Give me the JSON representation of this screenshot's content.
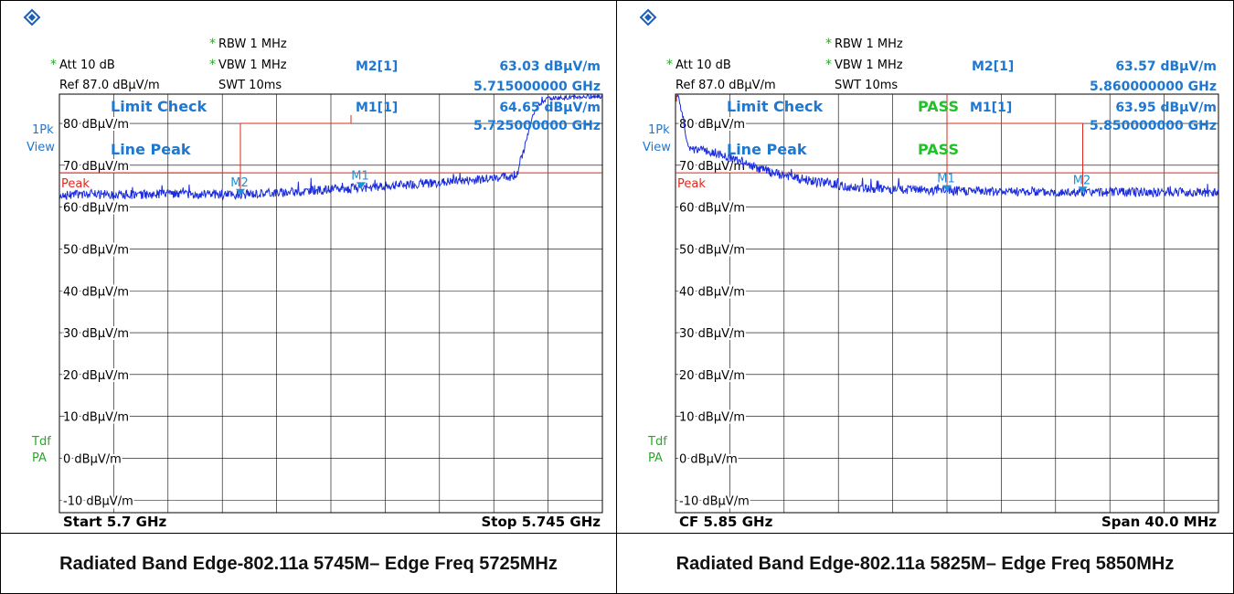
{
  "captions": [
    "Radiated Band Edge-802.11a 5745M– Edge Freq 5725MHz",
    "Radiated Band Edge-802.11a 5825M– Edge Freq 5850MHz"
  ],
  "colors": {
    "trace": "#1a2cdc",
    "limit": "#e0281e",
    "marker": "#1e90d8",
    "info_blue": "#1e78d2",
    "pass": "#22c02a",
    "side_green": "#2aa82a",
    "grid": "#000000"
  },
  "chart_data": [
    {
      "type": "line",
      "title": "",
      "logo": "rohde-schwarz-logo",
      "header": {
        "att": "Att  10 dB",
        "ref": "Ref  87.0 dBµV/m",
        "rbw": "RBW 1 MHz",
        "vbw": "VBW 1 MHz",
        "swt": "SWT 10ms",
        "m2_label": "M2[1]",
        "m2_level": "63.03 dBµV/m",
        "m2_freq": "5.715000000 GHz",
        "m1_label": "M1[1]",
        "m1_level": "64.65 dBµV/m",
        "m1_freq": "5.725000000 GHz"
      },
      "side": {
        "trace": "1Pk",
        "view": "View",
        "tdf": "Tdf",
        "pa": "PA"
      },
      "limit_check": "Limit Check",
      "line_peak": "Line Peak",
      "pass_labels": [],
      "limit_label": "Peak",
      "xlabel_left": "Start 5.7 GHz",
      "xlabel_right": "Stop 5.745 GHz",
      "x_range": [
        5.7,
        5.745
      ],
      "ylim": [
        -13,
        87
      ],
      "yticks": [
        80,
        70,
        60,
        50,
        40,
        30,
        20,
        10,
        0,
        -10
      ],
      "ytick_labels": [
        "80 dBµV/m",
        "70 dBµV/m",
        "60 dBµV/m",
        "50 dBµV/m",
        "40 dBµV/m",
        "30 dBµV/m",
        "20 dBµV/m",
        "10 dBµV/m",
        "0 dBµV/m",
        "-10 dBµV/m"
      ],
      "limit_line": 68.2,
      "trace": [
        [
          5.7,
          62.9
        ],
        [
          5.705,
          63.0
        ],
        [
          5.71,
          63.1
        ],
        [
          5.715,
          63.03
        ],
        [
          5.72,
          63.7
        ],
        [
          5.725,
          64.65
        ],
        [
          5.73,
          65.6
        ],
        [
          5.735,
          66.6
        ],
        [
          5.7375,
          67.3
        ],
        [
          5.738,
          68.5
        ],
        [
          5.7385,
          74
        ],
        [
          5.739,
          79
        ],
        [
          5.7393,
          82.5
        ],
        [
          5.7397,
          84.5
        ],
        [
          5.7405,
          86
        ],
        [
          5.745,
          86.5
        ]
      ],
      "markers": [
        {
          "name": "M2",
          "x": 5.715,
          "y": 63.03
        },
        {
          "name": "M1",
          "x": 5.725,
          "y": 64.65
        }
      ],
      "ref_lines": [
        {
          "x": 5.715,
          "y": 80
        }
      ]
    },
    {
      "type": "line",
      "title": "",
      "logo": "rohde-schwarz-logo",
      "header": {
        "att": "Att  10 dB",
        "ref": "Ref  87.0 dBµV/m",
        "rbw": "RBW 1 MHz",
        "vbw": "VBW 1 MHz",
        "swt": "SWT 10ms",
        "m2_label": "M2[1]",
        "m2_level": "63.57 dBµV/m",
        "m2_freq": "5.860000000 GHz",
        "m1_label": "M1[1]",
        "m1_level": "63.95 dBµV/m",
        "m1_freq": "5.850000000 GHz"
      },
      "side": {
        "trace": "1Pk",
        "view": "View",
        "tdf": "Tdf",
        "pa": "PA"
      },
      "limit_check": "Limit Check",
      "line_peak": "Line Peak",
      "pass_labels": [
        "PASS",
        "PASS"
      ],
      "limit_label": "Peak",
      "xlabel_left": "CF 5.85 GHz",
      "xlabel_right": "Span 40.0 MHz",
      "x_range": [
        5.83,
        5.87
      ],
      "ylim": [
        -13,
        87
      ],
      "yticks": [
        80,
        70,
        60,
        50,
        40,
        30,
        20,
        10,
        0,
        -10
      ],
      "ytick_labels": [
        "80 dBµV/m",
        "70 dBµV/m",
        "60 dBµV/m",
        "50 dBµV/m",
        "40 dBµV/m",
        "30 dBµV/m",
        "20 dBµV/m",
        "10 dBµV/m",
        "0 dBµV/m",
        "-10 dBµV/m"
      ],
      "limit_line": 68.2,
      "trace": [
        [
          5.83,
          86.5
        ],
        [
          5.8302,
          86.5
        ],
        [
          5.8305,
          82
        ],
        [
          5.8308,
          76
        ],
        [
          5.831,
          74
        ],
        [
          5.833,
          73
        ],
        [
          5.835,
          70.5
        ],
        [
          5.837,
          68.3
        ],
        [
          5.84,
          66.2
        ],
        [
          5.843,
          64.8
        ],
        [
          5.846,
          64.2
        ],
        [
          5.85,
          63.95
        ],
        [
          5.855,
          63.7
        ],
        [
          5.86,
          63.57
        ],
        [
          5.865,
          63.6
        ],
        [
          5.87,
          63.5
        ]
      ],
      "markers": [
        {
          "name": "M1",
          "x": 5.85,
          "y": 63.95
        },
        {
          "name": "M2",
          "x": 5.86,
          "y": 63.57
        }
      ],
      "ref_lines": [
        {
          "x": 5.85,
          "y": 87
        },
        {
          "x": 5.86,
          "y": 80
        }
      ]
    }
  ]
}
